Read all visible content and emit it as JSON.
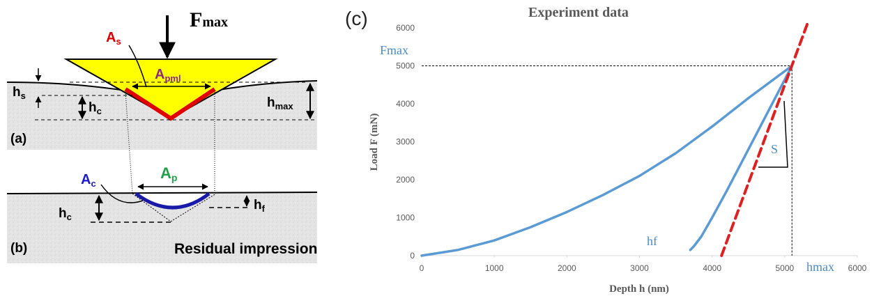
{
  "diagram": {
    "labels": {
      "fmax": {
        "main": "F",
        "sub": "max"
      },
      "as": {
        "main": "A",
        "sub": "s"
      },
      "apml": {
        "main": "A",
        "sub": "pml"
      },
      "hs": {
        "main": "h",
        "sub": "s"
      },
      "hc_a": {
        "main": "h",
        "sub": "c"
      },
      "hmax": {
        "main": "h",
        "sub": "max"
      },
      "panel_a": "(a)",
      "ac": {
        "main": "A",
        "sub": "c"
      },
      "ap": {
        "main": "A",
        "sub": "p"
      },
      "hc_b": {
        "main": "h",
        "sub": "c"
      },
      "hf": {
        "main": "h",
        "sub": "f"
      },
      "panel_b": "(b)",
      "residual": "Residual impression"
    }
  },
  "chart_data": {
    "type": "line",
    "panel_label": "(c)",
    "title": "Experiment data",
    "x_label": "Depth h (nm)",
    "y_label": "Load F (mN)",
    "xlim": [
      0,
      6000
    ],
    "ylim": [
      0,
      6000
    ],
    "xticks": [
      0,
      1000,
      2000,
      3000,
      4000,
      5000,
      6000
    ],
    "yticks": [
      0,
      1000,
      2000,
      3000,
      4000,
      5000,
      6000
    ],
    "grid": false,
    "annotations": [
      "Fmax",
      "hmax",
      "hf",
      "S"
    ],
    "series": [
      {
        "color": "#5b9bd5",
        "dash": false,
        "x": [
          0,
          500,
          1000,
          1500,
          2000,
          2500,
          3000,
          3500,
          4000,
          4500,
          5100
        ],
        "values": [
          0,
          150,
          400,
          750,
          1150,
          1600,
          2100,
          2700,
          3400,
          4150,
          5000
        ]
      },
      {
        "color": "#5b9bd5",
        "dash": false,
        "x": [
          5100,
          4800,
          4500,
          4200,
          4000,
          3850,
          3750,
          3700
        ],
        "values": [
          5000,
          3900,
          2800,
          1700,
          1000,
          500,
          250,
          150
        ]
      },
      {
        "color": "#e02020",
        "dash": true,
        "x": [
          4130,
          5330
        ],
        "values": [
          0,
          6200
        ]
      }
    ]
  }
}
